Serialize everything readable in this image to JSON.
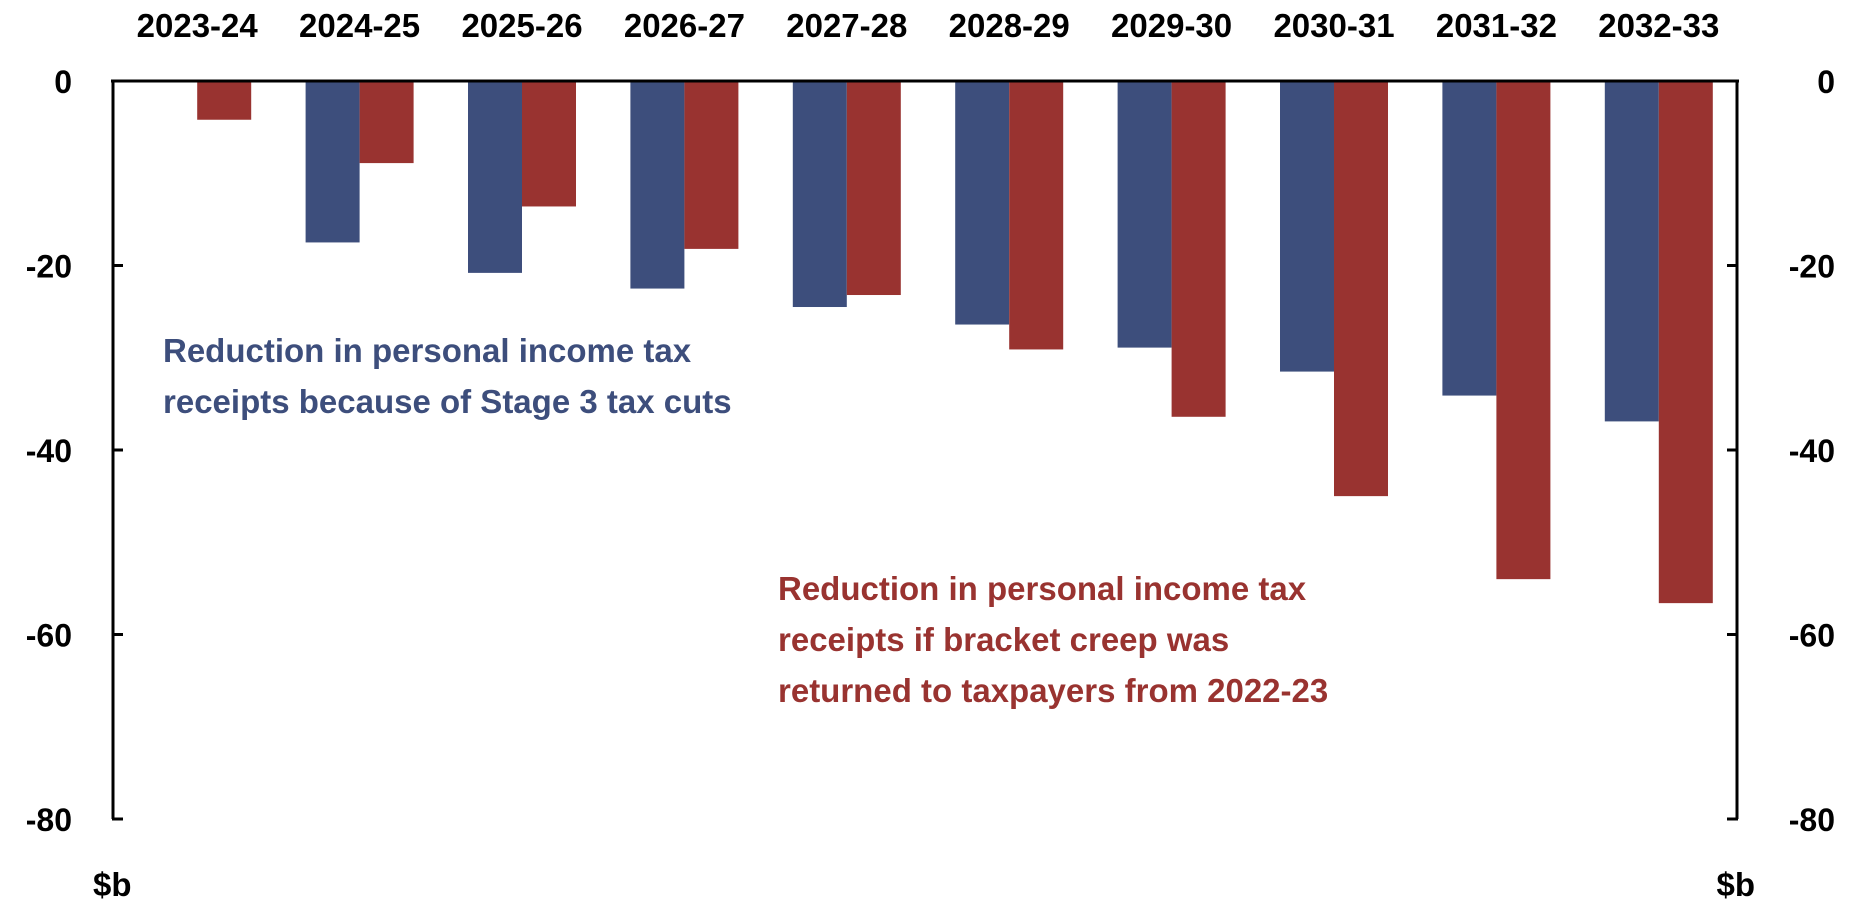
{
  "chart_data": {
    "type": "bar",
    "categories": [
      "2023-24",
      "2024-25",
      "2025-26",
      "2026-27",
      "2027-28",
      "2028-29",
      "2029-30",
      "2030-31",
      "2031-32",
      "2032-33"
    ],
    "series": [
      {
        "values": [
          0,
          -17.5,
          -20.8,
          -22.5,
          -24.5,
          -26.4,
          -28.9,
          -31.5,
          -34.1,
          -36.9
        ],
        "color": "#3d4e7c"
      },
      {
        "values": [
          -4.2,
          -8.9,
          -13.6,
          -18.2,
          -23.2,
          -29.1,
          -36.4,
          -45.0,
          -54.0,
          -56.6
        ],
        "color": "#993330"
      }
    ],
    "ylim": [
      -80,
      0
    ],
    "yticks": [
      0,
      -20,
      -40,
      -60,
      -80
    ],
    "ytick_labels": [
      "0",
      "-20",
      "-40",
      "-60",
      "-80"
    ],
    "y_unit_left": "$b",
    "y_unit_right": "$b",
    "annotations": [
      {
        "lines": [
          "Reduction in personal income tax",
          "receipts because of Stage 3 tax cuts"
        ],
        "color": "#3d4e7c"
      },
      {
        "lines": [
          "Reduction in personal income tax",
          "receipts if bracket creep was",
          "returned to taxpayers from 2022-23"
        ],
        "color": "#993330"
      }
    ],
    "x_axis_position": "top",
    "grid": false,
    "legend": "none"
  }
}
